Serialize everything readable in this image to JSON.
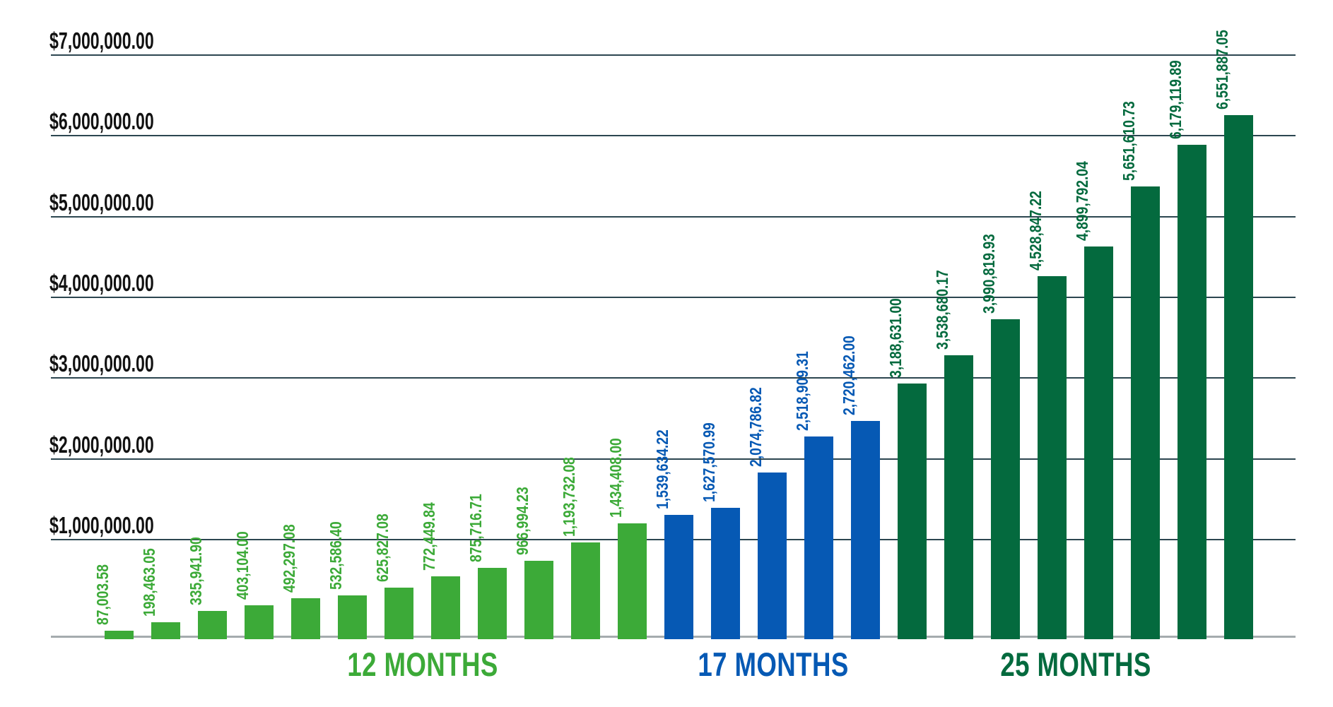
{
  "chart_data": {
    "type": "bar",
    "title": "",
    "xlabel": "",
    "ylabel": "",
    "ylim": [
      0,
      7000000
    ],
    "grid": true,
    "legend_position": "none",
    "value_label_orientation": "vertical",
    "y_ticks": [
      {
        "value": 7000000,
        "label": "$7,000,000.00"
      },
      {
        "value": 6000000,
        "label": "$6,000,000.00"
      },
      {
        "value": 5000000,
        "label": "$5,000,000.00"
      },
      {
        "value": 4000000,
        "label": "$4,000,000.00"
      },
      {
        "value": 3000000,
        "label": "$3,000,000.00"
      },
      {
        "value": 2000000,
        "label": "$2,000,000.00"
      },
      {
        "value": 1000000,
        "label": "$1,000,000.00"
      }
    ],
    "groups": [
      {
        "label": "12 MONTHS",
        "color": "#3caa38",
        "bars": [
          {
            "value": 87003.58,
            "label": "87,003.58"
          },
          {
            "value": 198463.05,
            "label": "198,463.05"
          },
          {
            "value": 335941.9,
            "label": "335,941.90"
          },
          {
            "value": 403104.0,
            "label": "403,104.00"
          },
          {
            "value": 492297.08,
            "label": "492,297.08"
          },
          {
            "value": 532586.4,
            "label": "532,586.40"
          },
          {
            "value": 625827.08,
            "label": "625,827.08"
          },
          {
            "value": 772449.84,
            "label": "772,449.84"
          },
          {
            "value": 875716.71,
            "label": "875,716.71"
          },
          {
            "value": 966994.23,
            "label": "966,994.23"
          },
          {
            "value": 1193732.08,
            "label": "1,193,732.08"
          },
          {
            "value": 1434408.0,
            "label": "1,434,408.00"
          }
        ]
      },
      {
        "label": "17 MONTHS",
        "color": "#0659b4",
        "bars": [
          {
            "value": 1539634.22,
            "label": "1,539,634.22"
          },
          {
            "value": 1627570.99,
            "label": "1,627,570.99"
          },
          {
            "value": 2074786.82,
            "label": "2,074,786.82"
          },
          {
            "value": 2518909.31,
            "label": "2,518,909.31"
          },
          {
            "value": 2720462.0,
            "label": "2,720,462.00"
          }
        ]
      },
      {
        "label": "25 MONTHS",
        "color": "#046a3e",
        "bars": [
          {
            "value": 3188631.0,
            "label": "3,188,631.00"
          },
          {
            "value": 3538680.17,
            "label": "3,538,680.17"
          },
          {
            "value": 3990819.93,
            "label": "3,990,819.93"
          },
          {
            "value": 4528847.22,
            "label": "4,528,847.22"
          },
          {
            "value": 4899792.04,
            "label": "4,899,792.04"
          },
          {
            "value": 5651610.73,
            "label": "5,651,610.73"
          },
          {
            "value": 6179119.89,
            "label": "6,179,119.89"
          },
          {
            "value": 6551887.05,
            "label": "6,551,887.05"
          }
        ]
      }
    ],
    "colors": {
      "gridline": "#2c4650",
      "baseline": "#a5abae",
      "tick_text": "#111111",
      "background": "#ffffff"
    }
  }
}
